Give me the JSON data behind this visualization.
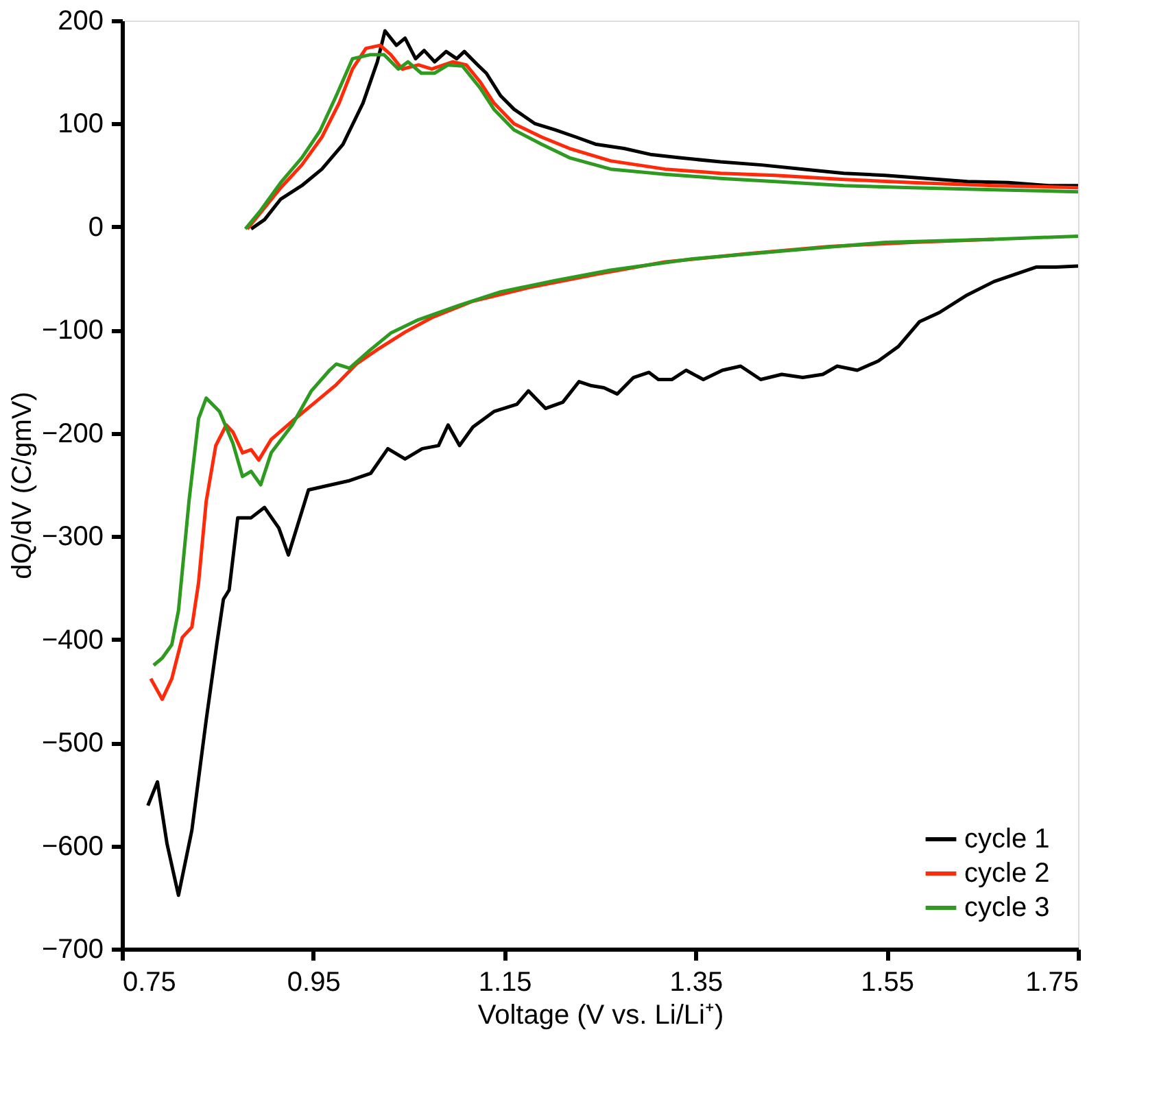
{
  "chart_data": {
    "type": "line",
    "xlabel": "Voltage (V vs. Li/Li⁺)",
    "ylabel": "dQ/dV (C/gmV)",
    "xlim": [
      0.75,
      1.75
    ],
    "xticks": [
      0.75,
      0.95,
      1.15,
      1.35,
      1.55,
      1.75
    ],
    "ylim": [
      -700,
      200
    ],
    "yticks": [
      -700,
      -600,
      -500,
      -400,
      -300,
      -200,
      -100,
      0,
      100,
      200
    ],
    "grid": false,
    "legend": "bottom right",
    "marker": "none",
    "line_style": "solid",
    "series": [
      {
        "name": "cycle 1",
        "color": "#000000",
        "x": [
          0.777,
          0.787,
          0.797,
          0.809,
          0.823,
          0.838,
          0.849,
          0.856,
          0.862,
          0.871,
          0.885,
          0.899,
          0.914,
          0.924,
          0.945,
          0.988,
          1.01,
          1.028,
          1.046,
          1.064,
          1.081,
          1.091,
          1.103,
          1.117,
          1.139,
          1.163,
          1.175,
          1.193,
          1.211,
          1.228,
          1.241,
          1.254,
          1.268,
          1.285,
          1.301,
          1.311,
          1.325,
          1.34,
          1.358,
          1.378,
          1.397,
          1.418,
          1.44,
          1.462,
          1.483,
          1.498,
          1.519,
          1.541,
          1.562,
          1.584,
          1.605,
          1.634,
          1.662,
          1.684,
          1.706,
          1.727,
          1.75,
          null,
          0.885,
          0.899,
          0.916,
          0.938,
          0.959,
          0.981,
          1.002,
          1.017,
          1.025,
          1.037,
          1.046,
          1.057,
          1.066,
          1.077,
          1.089,
          1.1,
          1.108,
          1.122,
          1.131,
          1.146,
          1.16,
          1.182,
          1.203,
          1.225,
          1.246,
          1.275,
          1.304,
          1.333,
          1.376,
          1.419,
          1.462,
          1.505,
          1.548,
          1.591,
          1.634,
          1.677,
          1.72,
          1.75
        ],
        "values": [
          -561,
          -538,
          -598,
          -648,
          -585,
          -478,
          -405,
          -361,
          -352,
          -282,
          -282,
          -272,
          -292,
          -318,
          -255,
          -246,
          -239,
          -215,
          -225,
          -215,
          -212,
          -192,
          -212,
          -194,
          -179,
          -172,
          -159,
          -176,
          -170,
          -150,
          -154,
          -156,
          -162,
          -146,
          -141,
          -148,
          -148,
          -139,
          -148,
          -139,
          -135,
          -148,
          -143,
          -146,
          -143,
          -135,
          -139,
          -130,
          -116,
          -92,
          -83,
          -66,
          -53,
          -46,
          -39,
          -39,
          -38,
          null,
          -2,
          7,
          27,
          40,
          56,
          80,
          120,
          160,
          190,
          176,
          183,
          163,
          171,
          160,
          170,
          163,
          170,
          157,
          149,
          127,
          114,
          100,
          94,
          87,
          80,
          76,
          70,
          67,
          63,
          60,
          56,
          52,
          50,
          47,
          44,
          43,
          40,
          40
        ]
      },
      {
        "name": "cycle 2",
        "color": "#ff2a0a",
        "x": [
          0.78,
          0.792,
          0.802,
          0.813,
          0.823,
          0.83,
          0.838,
          0.848,
          0.859,
          0.866,
          0.876,
          0.885,
          0.893,
          0.906,
          0.931,
          0.952,
          0.974,
          0.995,
          1.017,
          1.046,
          1.074,
          1.117,
          1.175,
          1.246,
          1.318,
          1.404,
          1.49,
          1.576,
          1.662,
          null,
          0.881,
          0.895,
          0.916,
          0.938,
          0.959,
          0.977,
          0.991,
          1.005,
          1.02,
          1.031,
          1.043,
          1.06,
          1.074,
          1.096,
          1.11,
          1.125,
          1.139,
          1.16,
          1.189,
          1.218,
          1.261,
          1.318,
          1.376,
          1.433,
          1.505,
          1.576,
          1.662,
          1.75
        ],
        "values": [
          -438,
          -458,
          -438,
          -398,
          -388,
          -345,
          -266,
          -212,
          -192,
          -199,
          -219,
          -216,
          -226,
          -206,
          -186,
          -170,
          -153,
          -133,
          -119,
          -102,
          -88,
          -72,
          -59,
          -46,
          -34,
          -26,
          -19,
          -15,
          -12,
          null,
          -2,
          14,
          38,
          60,
          87,
          120,
          153,
          173,
          176,
          167,
          153,
          157,
          153,
          160,
          157,
          140,
          120,
          100,
          87,
          76,
          64,
          56,
          52,
          50,
          46,
          43,
          40,
          38
        ]
      },
      {
        "name": "cycle 3",
        "color": "#2e9a1f",
        "x": [
          0.783,
          0.792,
          0.802,
          0.809,
          0.82,
          0.83,
          0.838,
          0.852,
          0.866,
          0.876,
          0.885,
          0.895,
          0.906,
          0.928,
          0.948,
          0.967,
          0.974,
          0.988,
          1.01,
          1.031,
          1.06,
          1.103,
          1.146,
          1.203,
          1.261,
          1.347,
          1.433,
          1.548,
          1.662,
          1.75,
          null,
          0.879,
          0.895,
          0.916,
          0.938,
          0.957,
          0.974,
          0.991,
          1.01,
          1.024,
          1.039,
          1.049,
          1.063,
          1.077,
          1.091,
          1.106,
          1.125,
          1.139,
          1.16,
          1.189,
          1.218,
          1.261,
          1.318,
          1.376,
          1.433,
          1.505,
          1.576,
          1.662,
          1.75
        ],
        "values": [
          -425,
          -418,
          -405,
          -372,
          -266,
          -186,
          -166,
          -179,
          -210,
          -242,
          -237,
          -250,
          -219,
          -192,
          -159,
          -139,
          -133,
          -137,
          -119,
          -103,
          -90,
          -76,
          -63,
          -52,
          -42,
          -31,
          -24,
          -15,
          -12,
          -9,
          null,
          -2,
          16,
          43,
          67,
          93,
          127,
          163,
          167,
          167,
          153,
          160,
          149,
          149,
          157,
          156,
          134,
          114,
          94,
          80,
          67,
          56,
          51,
          47,
          44,
          40,
          38,
          36,
          34
        ]
      }
    ]
  }
}
